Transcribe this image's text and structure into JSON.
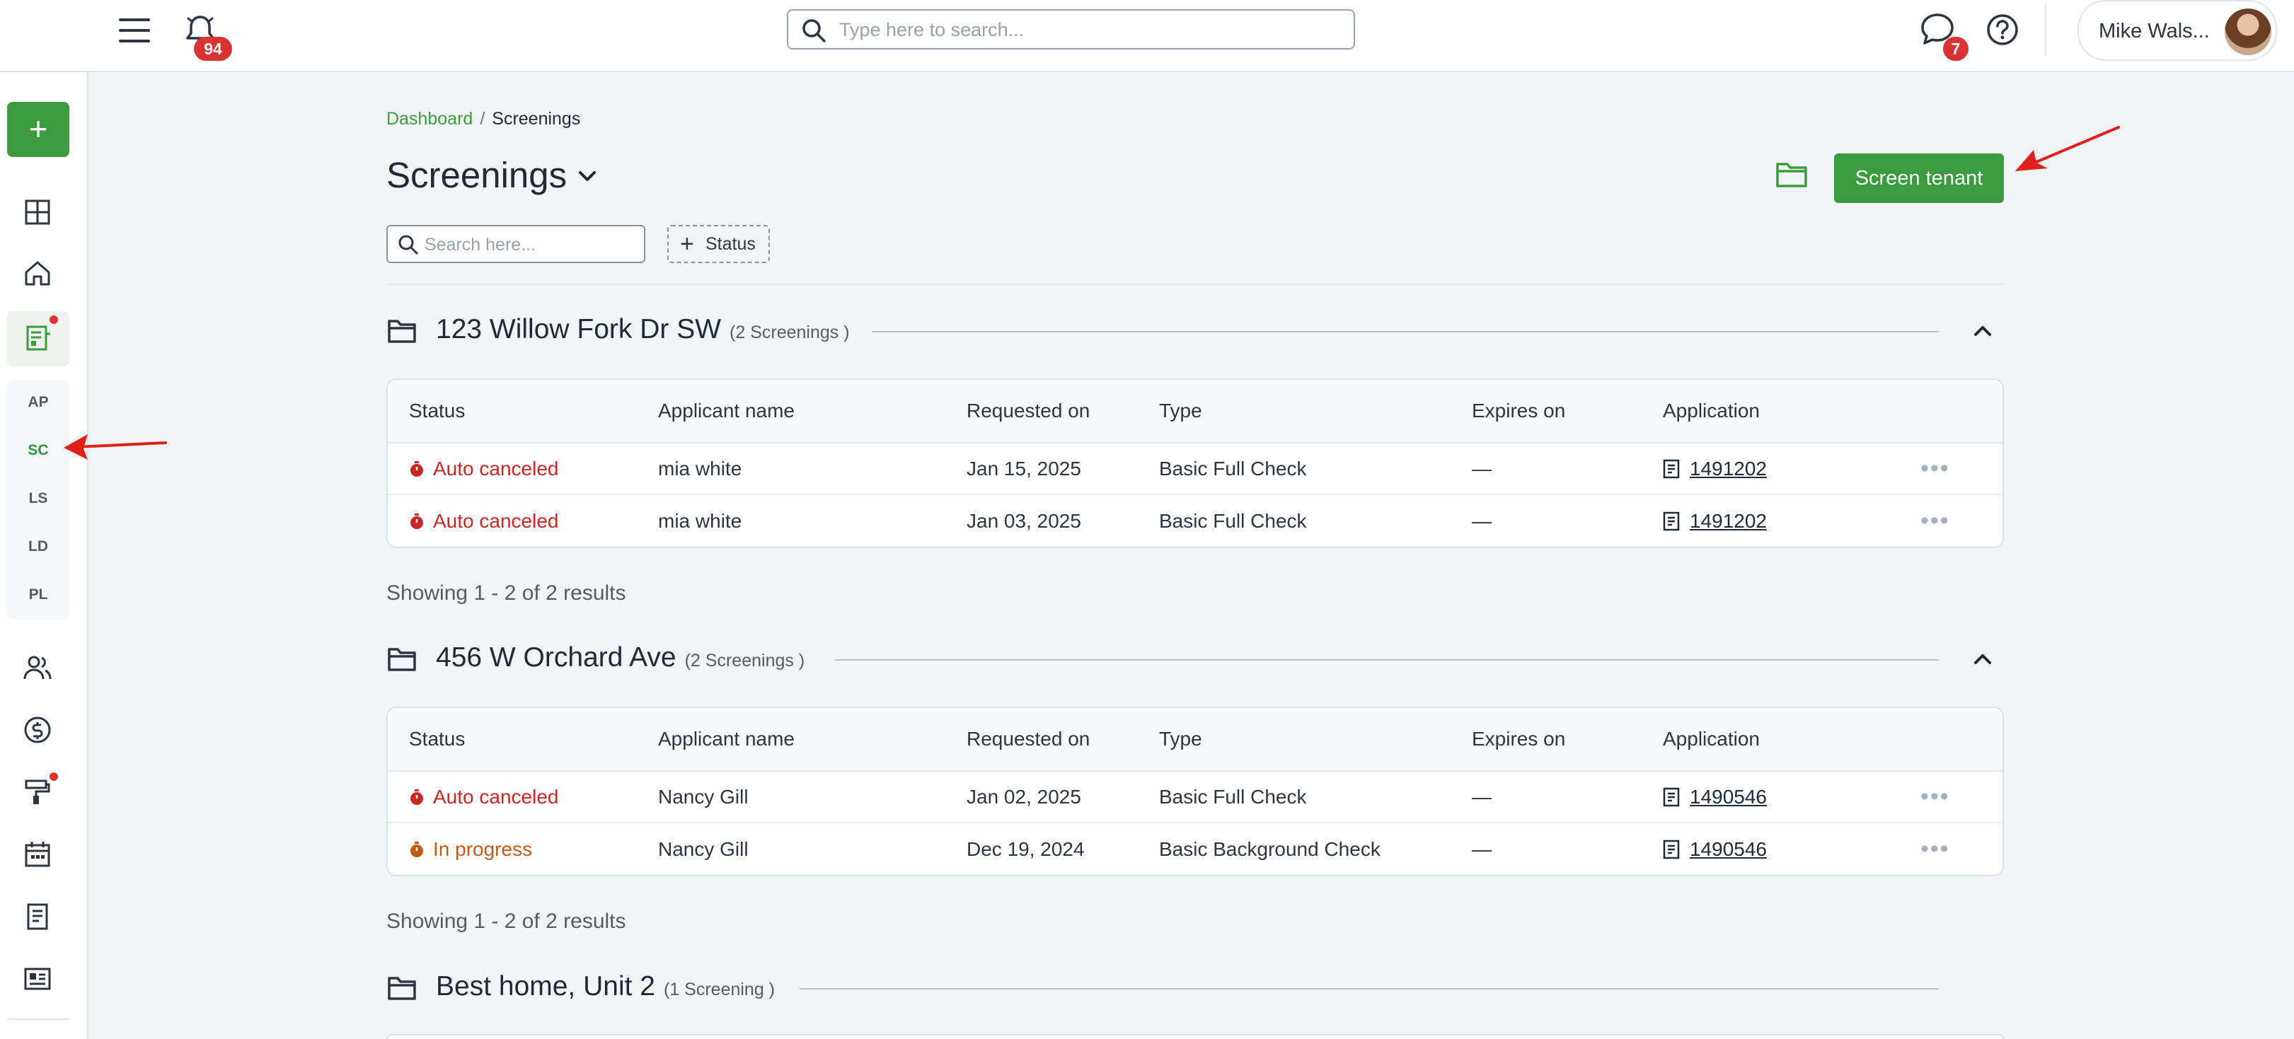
{
  "topbar": {
    "notification_count": "94",
    "search_placeholder": "Type here to search...",
    "messages_count": "7",
    "user_name": "Mike Wals..."
  },
  "sidebar": {
    "add_label": "+",
    "codes": [
      "AP",
      "SC",
      "LS",
      "LD",
      "PL"
    ],
    "active_code": "SC"
  },
  "breadcrumb": {
    "parent": "Dashboard",
    "separator": "/",
    "current": "Screenings"
  },
  "page": {
    "title": "Screenings",
    "screen_button": "Screen tenant",
    "search_placeholder": "Search here...",
    "status_filter": "Status"
  },
  "columns": [
    "Status",
    "Applicant name",
    "Requested on",
    "Type",
    "Expires on",
    "Application"
  ],
  "groups": [
    {
      "name": "123 Willow Fork Dr SW",
      "count": "(2 Screenings )",
      "showing": "Showing 1 - 2 of 2 results",
      "rows": [
        {
          "status": "Auto canceled",
          "status_kind": "canceled",
          "applicant": "mia white",
          "requested": "Jan 15, 2025",
          "type": "Basic Full Check",
          "expires": "—",
          "application": "1491202"
        },
        {
          "status": "Auto canceled",
          "status_kind": "canceled",
          "applicant": "mia white",
          "requested": "Jan 03, 2025",
          "type": "Basic Full Check",
          "expires": "—",
          "application": "1491202"
        }
      ]
    },
    {
      "name": "456 W Orchard Ave",
      "count": "(2 Screenings )",
      "showing": "Showing 1 - 2 of 2 results",
      "rows": [
        {
          "status": "Auto canceled",
          "status_kind": "canceled",
          "applicant": "Nancy Gill",
          "requested": "Jan 02, 2025",
          "type": "Basic Full Check",
          "expires": "—",
          "application": "1490546"
        },
        {
          "status": "In progress",
          "status_kind": "progress",
          "applicant": "Nancy Gill",
          "requested": "Dec 19, 2024",
          "type": "Basic Background Check",
          "expires": "—",
          "application": "1490546"
        }
      ]
    },
    {
      "name": "Best home, Unit 2",
      "count": "(1 Screening )"
    }
  ],
  "colors": {
    "brand_green": "#3c9b3e",
    "canceled_red": "#c62828",
    "progress_orange": "#c05a14",
    "badge_red": "#d93434"
  }
}
